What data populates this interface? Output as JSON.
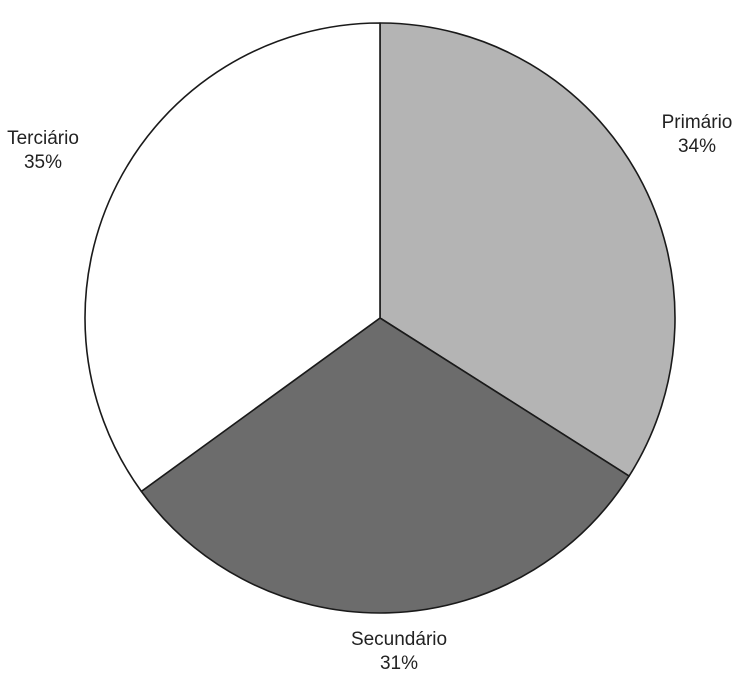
{
  "chart_data": {
    "type": "pie",
    "slices": [
      {
        "label": "Primário",
        "value": 34,
        "percent_label": "34%",
        "color": "#b4b4b4"
      },
      {
        "label": "Secundário",
        "value": 31,
        "percent_label": "31%",
        "color": "#6c6c6c"
      },
      {
        "label": "Terciário",
        "value": 35,
        "percent_label": "35%",
        "color": "#ffffff"
      }
    ],
    "start": "12 o'clock",
    "direction": "clockwise",
    "outline_color": "#1a1a1a",
    "legend": "none",
    "labels": "outside"
  }
}
